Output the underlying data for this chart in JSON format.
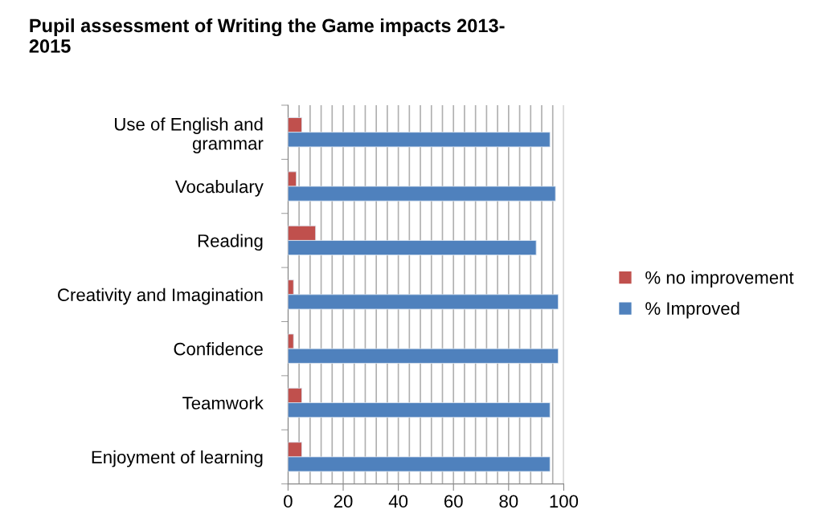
{
  "chart_data": {
    "type": "bar",
    "orientation": "horizontal",
    "title": "Pupil assessment of Writing the Game impacts 2013-\n2015",
    "categories": [
      "Use of English and\ngrammar",
      "Vocabulary",
      "Reading",
      "Creativity and Imagination",
      "Confidence",
      "Teamwork",
      "Enjoyment of learning"
    ],
    "series": [
      {
        "name": "% no improvement",
        "color": "#c0504d",
        "values": [
          5,
          3,
          10,
          2,
          2,
          5,
          5
        ]
      },
      {
        "name": "% Improved",
        "color": "#4f81bd",
        "values": [
          95,
          97,
          90,
          98,
          98,
          95,
          95
        ]
      }
    ],
    "xlim": [
      0,
      100
    ],
    "xticks": [
      0,
      {
        "value": 4,
        "label": null
      },
      {
        "value": 8,
        "label": null
      },
      {
        "value": 12,
        "label": null
      },
      {
        "value": 16,
        "label": null
      },
      20,
      {
        "value": 24,
        "label": null
      },
      {
        "value": 28,
        "label": null
      },
      {
        "value": 32,
        "label": null
      },
      {
        "value": 36,
        "label": null
      },
      40,
      {
        "value": 44,
        "label": null
      },
      {
        "value": 48,
        "label": null
      },
      {
        "value": 52,
        "label": null
      },
      {
        "value": 56,
        "label": null
      },
      60,
      {
        "value": 64,
        "label": null
      },
      {
        "value": 68,
        "label": null
      },
      {
        "value": 72,
        "label": null
      },
      {
        "value": 76,
        "label": null
      },
      80,
      {
        "value": 84,
        "label": null
      },
      {
        "value": 88,
        "label": null
      },
      {
        "value": 92,
        "label": null
      },
      {
        "value": 96,
        "label": null
      },
      100
    ],
    "grid": "x",
    "legend": "right"
  }
}
